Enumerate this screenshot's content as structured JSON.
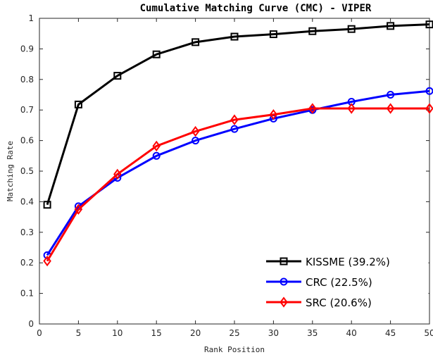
{
  "chart_data": {
    "type": "line",
    "title": "Cumulative Matching Curve (CMC) - VIPER",
    "xlabel": "Rank Position",
    "ylabel": "Matching Rate",
    "xlim": [
      0,
      50
    ],
    "ylim": [
      0,
      1
    ],
    "xticks": [
      0,
      5,
      10,
      15,
      20,
      25,
      30,
      35,
      40,
      45,
      50
    ],
    "yticks": [
      0,
      0.1,
      0.2,
      0.3,
      0.4,
      0.5,
      0.6,
      0.7,
      0.8,
      0.9,
      1
    ],
    "xtick_labels": [
      "0",
      "5",
      "10",
      "15",
      "20",
      "25",
      "30",
      "35",
      "40",
      "45",
      "50"
    ],
    "ytick_labels": [
      "0",
      "0.1",
      "0.2",
      "0.3",
      "0.4",
      "0.5",
      "0.6",
      "0.7",
      "0.8",
      "0.9",
      "1"
    ],
    "grid": false,
    "legend_position": "bottom-right",
    "x": [
      1,
      5,
      10,
      15,
      20,
      25,
      30,
      35,
      40,
      45,
      50
    ],
    "series": [
      {
        "name": "KISSME (39.2%)",
        "color": "#000000",
        "marker": "square",
        "values": [
          0.39,
          0.718,
          0.812,
          0.882,
          0.922,
          0.94,
          0.948,
          0.958,
          0.965,
          0.975,
          0.98
        ]
      },
      {
        "name": "CRC (22.5%)",
        "color": "#0000ff",
        "marker": "circle",
        "values": [
          0.225,
          0.385,
          0.478,
          0.55,
          0.6,
          0.638,
          0.672,
          0.7,
          0.727,
          0.75,
          0.762
        ]
      },
      {
        "name": "SRC (20.6%)",
        "color": "#ff0000",
        "marker": "diamond",
        "values": [
          0.206,
          0.375,
          0.49,
          0.582,
          0.63,
          0.668,
          0.685,
          0.705,
          0.705,
          0.705,
          0.705
        ]
      }
    ]
  }
}
